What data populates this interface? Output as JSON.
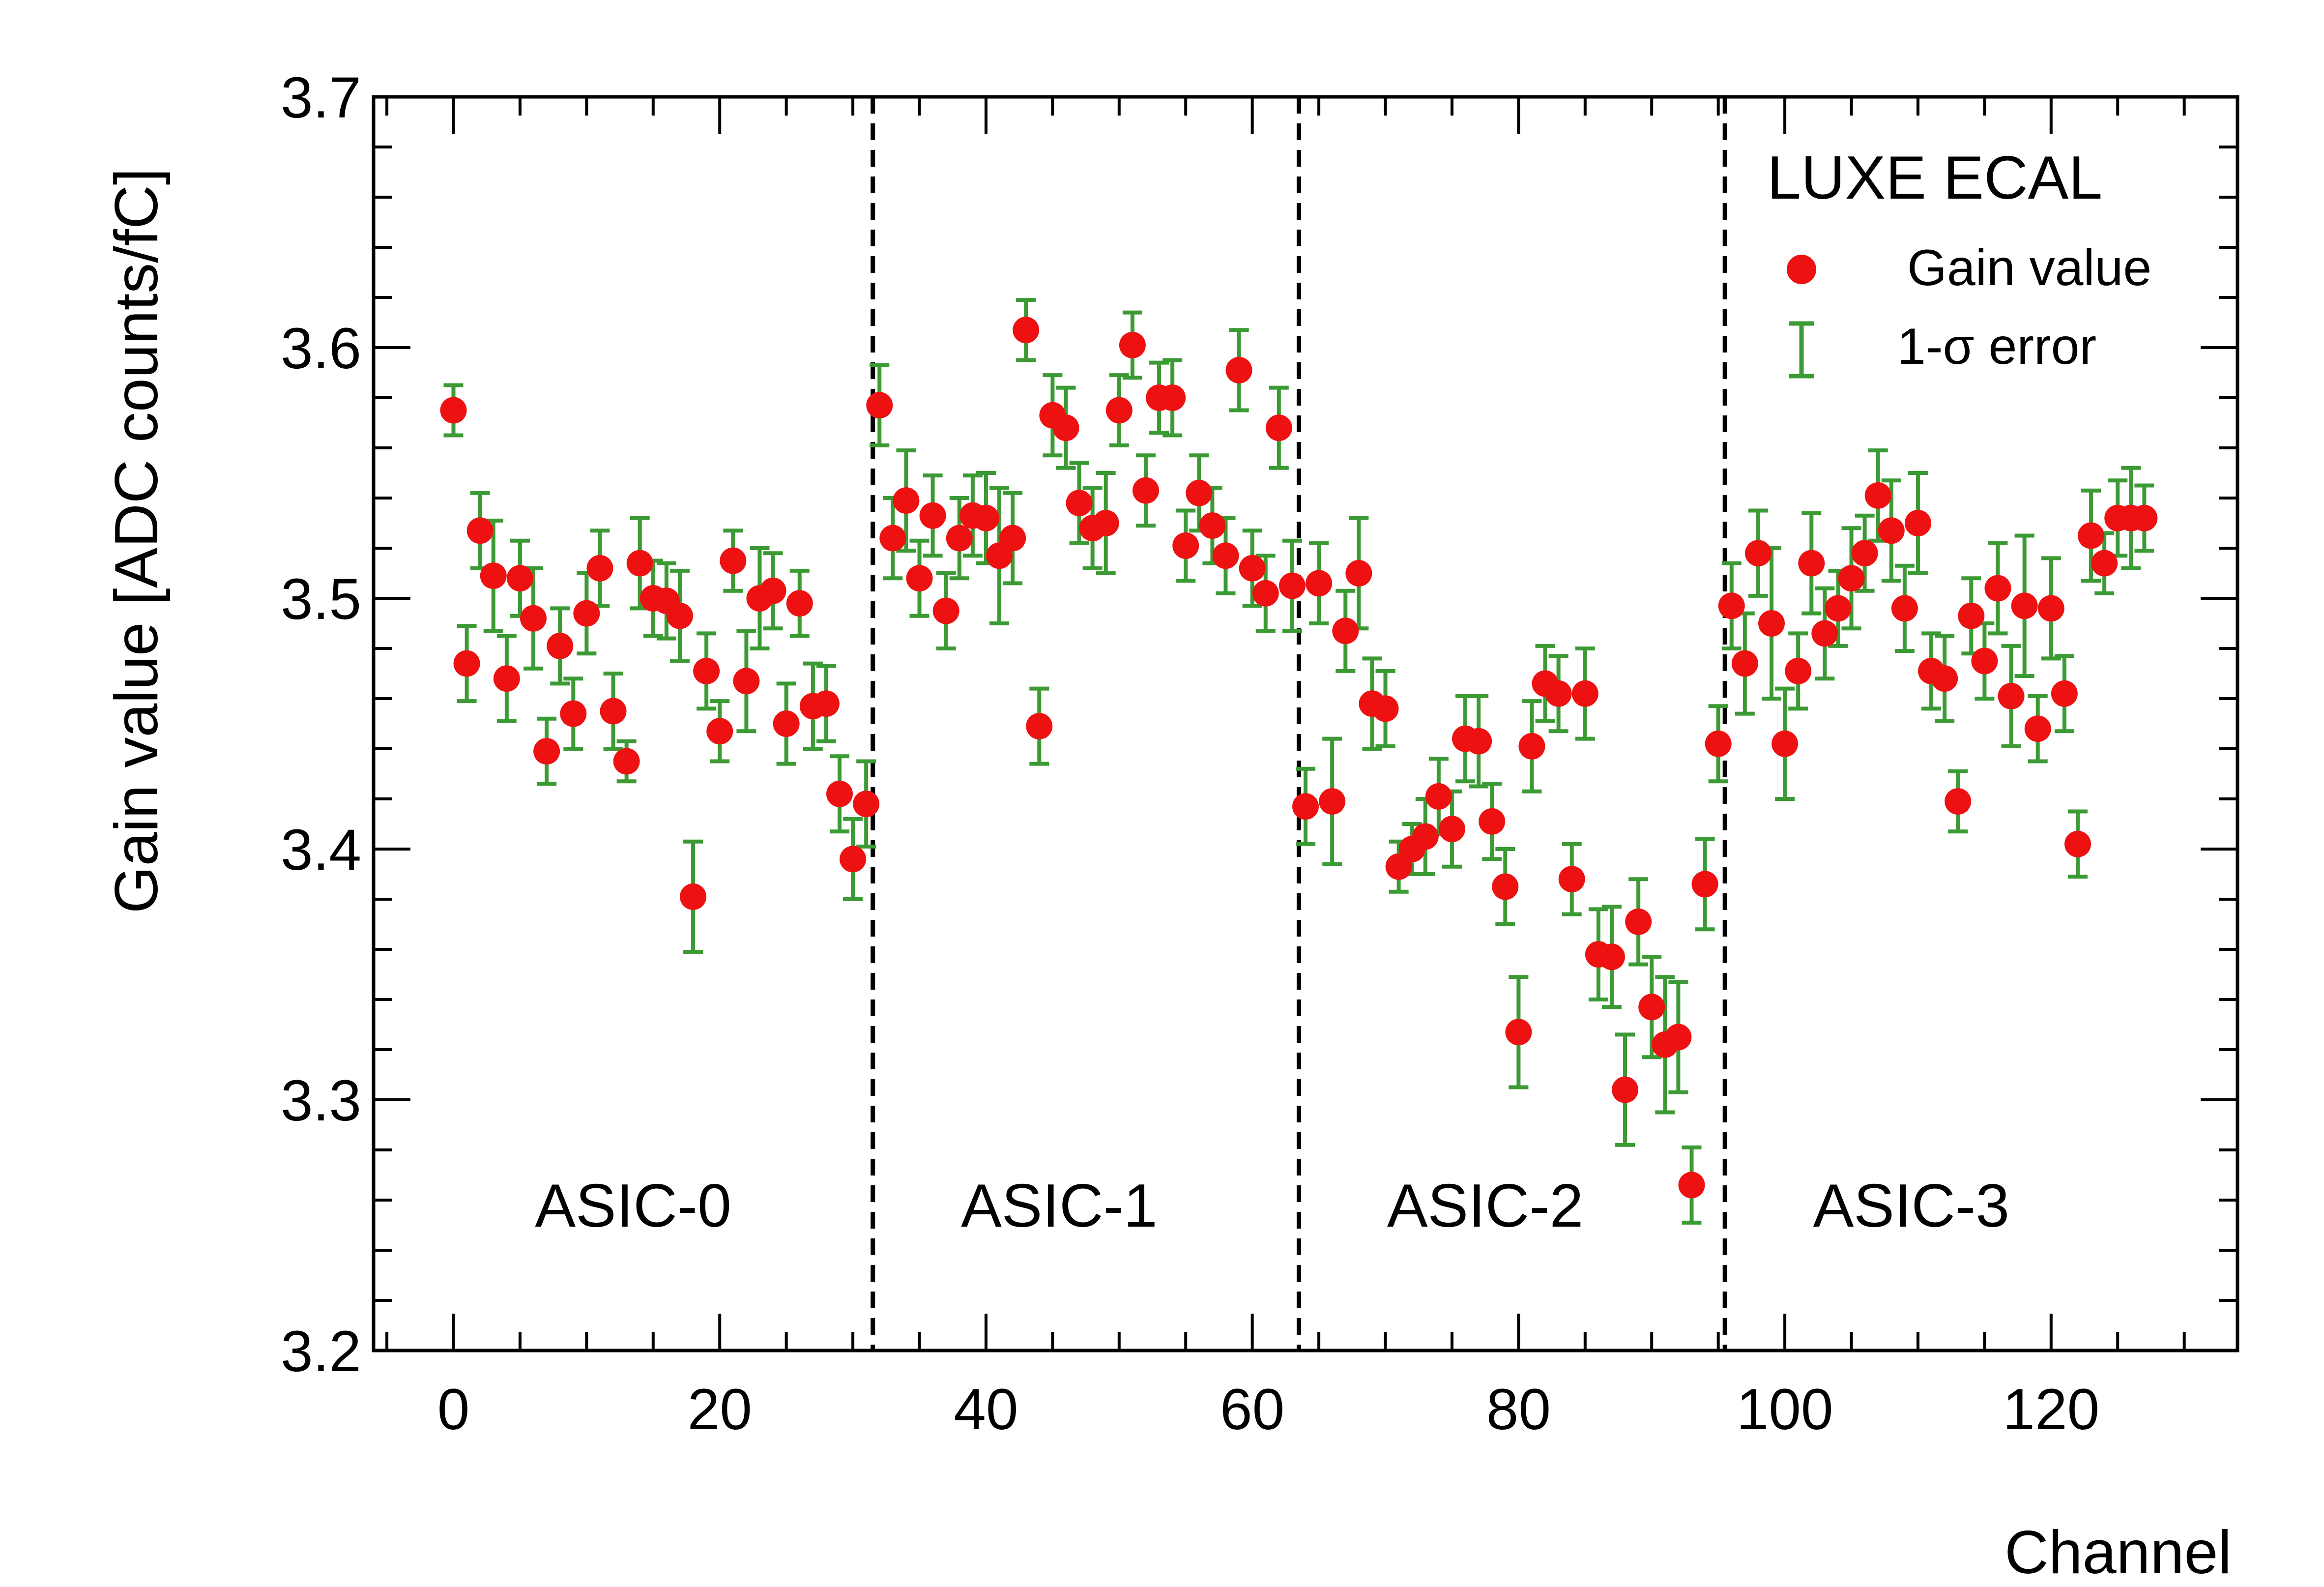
{
  "chart_data": {
    "type": "scatter",
    "title": "",
    "xlabel": "Channel",
    "ylabel": "Gain value [ADC counts/fC]",
    "xlim": [
      -6,
      134
    ],
    "ylim": [
      3.2,
      3.7
    ],
    "xticks": [
      0,
      20,
      40,
      60,
      80,
      100,
      120
    ],
    "xtick_labels": [
      "0",
      "20",
      "40",
      "60",
      "80",
      "100",
      "120"
    ],
    "yticks": [
      3.2,
      3.3,
      3.4,
      3.5,
      3.6,
      3.7
    ],
    "ytick_labels": [
      "3.2",
      "3.3",
      "3.4",
      "3.5",
      "3.6",
      "3.7"
    ],
    "grid": false,
    "legend": {
      "placement": "top-right",
      "title": "LUXE ECAL",
      "entries": [
        {
          "label": "Gain value",
          "marker": "circle",
          "color": "#ee1111"
        },
        {
          "label": "1-σ error",
          "marker": "errorbar",
          "color": "#3c9a35"
        }
      ]
    },
    "region_boundaries": [
      31.5,
      63.5,
      95.5
    ],
    "region_labels": [
      {
        "text": "ASIC-0",
        "x": 13.5,
        "y": 3.258
      },
      {
        "text": "ASIC-1",
        "x": 45.5,
        "y": 3.258
      },
      {
        "text": "ASIC-2",
        "x": 77.5,
        "y": 3.258
      },
      {
        "text": "ASIC-3",
        "x": 109.5,
        "y": 3.258
      }
    ],
    "series": [
      {
        "name": "Gain value",
        "marker_color": "#ee1111",
        "error_color": "#3c9a35",
        "x": [
          0,
          1,
          2,
          3,
          4,
          5,
          6,
          7,
          8,
          9,
          10,
          11,
          12,
          13,
          14,
          15,
          16,
          17,
          18,
          19,
          20,
          21,
          22,
          23,
          24,
          25,
          26,
          27,
          28,
          29,
          30,
          31,
          32,
          33,
          34,
          35,
          36,
          37,
          38,
          39,
          40,
          41,
          42,
          43,
          44,
          45,
          46,
          47,
          48,
          49,
          50,
          51,
          52,
          53,
          54,
          55,
          56,
          57,
          58,
          59,
          60,
          61,
          62,
          63,
          64,
          65,
          66,
          67,
          68,
          69,
          70,
          71,
          72,
          73,
          74,
          75,
          76,
          77,
          78,
          79,
          80,
          81,
          82,
          83,
          84,
          85,
          86,
          87,
          88,
          89,
          90,
          91,
          92,
          93,
          94,
          95,
          96,
          97,
          98,
          99,
          100,
          101,
          102,
          103,
          104,
          105,
          106,
          107,
          108,
          109,
          110,
          111,
          112,
          113,
          114,
          115,
          116,
          117,
          118,
          119,
          120,
          121,
          122,
          123,
          124,
          125,
          126,
          127
        ],
        "y": [
          3.575,
          3.474,
          3.527,
          3.509,
          3.468,
          3.508,
          3.492,
          3.439,
          3.481,
          3.454,
          3.494,
          3.512,
          3.455,
          3.435,
          3.514,
          3.5,
          3.499,
          3.493,
          3.381,
          3.471,
          3.447,
          3.515,
          3.467,
          3.5,
          3.503,
          3.45,
          3.498,
          3.457,
          3.458,
          3.422,
          3.396,
          3.418,
          3.577,
          3.524,
          3.539,
          3.508,
          3.533,
          3.495,
          3.524,
          3.533,
          3.532,
          3.517,
          3.524,
          3.607,
          3.449,
          3.573,
          3.568,
          3.538,
          3.528,
          3.53,
          3.575,
          3.601,
          3.543,
          3.58,
          3.58,
          3.521,
          3.542,
          3.529,
          3.517,
          3.591,
          3.512,
          3.502,
          3.568,
          3.505,
          3.417,
          3.506,
          3.419,
          3.487,
          3.51,
          3.458,
          3.456,
          3.393,
          3.4,
          3.405,
          3.421,
          3.408,
          3.444,
          3.443,
          3.411,
          3.385,
          3.327,
          3.441,
          3.466,
          3.462,
          3.388,
          3.462,
          3.358,
          3.357,
          3.304,
          3.371,
          3.337,
          3.322,
          3.325,
          3.266,
          3.386,
          3.442,
          3.497,
          3.474,
          3.518,
          3.49,
          3.442,
          3.471,
          3.514,
          3.486,
          3.496,
          3.508,
          3.518,
          3.541,
          3.527,
          3.496,
          3.53,
          3.471,
          3.468,
          3.419,
          3.493,
          3.475,
          3.504,
          3.461,
          3.497,
          3.448,
          3.496,
          3.462,
          3.402,
          3.525,
          3.514,
          3.532,
          3.532,
          3.532
        ],
        "yerr": [
          0.01,
          0.015,
          0.015,
          0.022,
          0.017,
          0.015,
          0.02,
          0.013,
          0.015,
          0.014,
          0.016,
          0.015,
          0.015,
          0.008,
          0.018,
          0.015,
          0.015,
          0.018,
          0.022,
          0.015,
          0.012,
          0.012,
          0.02,
          0.02,
          0.015,
          0.016,
          0.013,
          0.017,
          0.015,
          0.015,
          0.016,
          0.017,
          0.016,
          0.016,
          0.02,
          0.015,
          0.016,
          0.015,
          0.016,
          0.016,
          0.018,
          0.027,
          0.018,
          0.012,
          0.015,
          0.016,
          0.016,
          0.016,
          0.016,
          0.02,
          0.014,
          0.013,
          0.014,
          0.014,
          0.015,
          0.014,
          0.015,
          0.015,
          0.015,
          0.016,
          0.015,
          0.015,
          0.016,
          0.018,
          0.015,
          0.016,
          0.025,
          0.016,
          0.022,
          0.018,
          0.015,
          0.01,
          0.01,
          0.015,
          0.015,
          0.015,
          0.017,
          0.018,
          0.015,
          0.015,
          0.022,
          0.018,
          0.015,
          0.015,
          0.014,
          0.018,
          0.018,
          0.02,
          0.022,
          0.017,
          0.02,
          0.027,
          0.022,
          0.015,
          0.018,
          0.015,
          0.017,
          0.02,
          0.017,
          0.03,
          0.022,
          0.015,
          0.02,
          0.018,
          0.015,
          0.02,
          0.015,
          0.018,
          0.02,
          0.017,
          0.02,
          0.015,
          0.017,
          0.012,
          0.015,
          0.015,
          0.018,
          0.02,
          0.028,
          0.013,
          0.02,
          0.015,
          0.013,
          0.018,
          0.012,
          0.015,
          0.02,
          0.013
        ]
      }
    ]
  }
}
